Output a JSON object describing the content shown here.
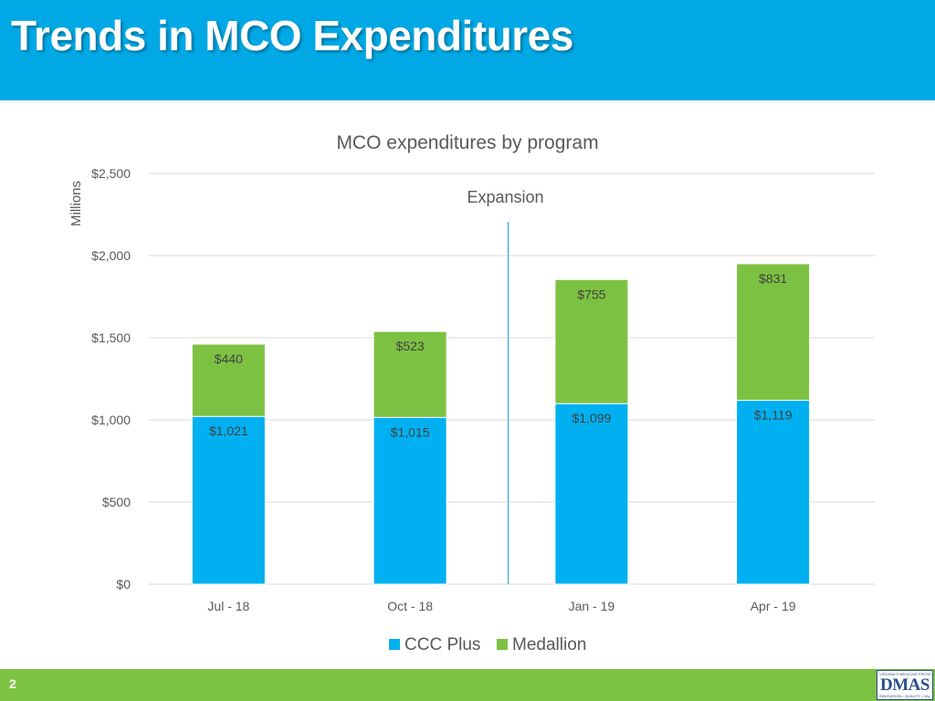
{
  "slide": {
    "title": "Trends in MCO Expenditures",
    "page_number": "2",
    "colors": {
      "header": "#00a9e6",
      "footer": "#7cc243"
    }
  },
  "logo": {
    "name": "DMAS",
    "top_text": "VIRGINIA'S MEDICAID PROGRAM",
    "bottom_text": "INNOVATION • QUALITY • VALUE"
  },
  "chart_data": {
    "type": "bar",
    "stacked": true,
    "title": "MCO expenditures by program",
    "ylabel": "Millions",
    "xlabel": "",
    "categories": [
      "Jul - 18",
      "Oct - 18",
      "Jan - 19",
      "Apr - 19"
    ],
    "series": [
      {
        "name": "CCC Plus",
        "color": "#00b0f0",
        "values": [
          1021,
          1015,
          1099,
          1119
        ],
        "labels": [
          "$1,021",
          "$1,015",
          "$1,099",
          "$1,119"
        ]
      },
      {
        "name": "Medallion",
        "color": "#7dc142",
        "values": [
          440,
          523,
          755,
          831
        ],
        "labels": [
          "$440",
          "$523",
          "$755",
          "$831"
        ]
      }
    ],
    "ylim": [
      0,
      2500
    ],
    "yticks": [
      0,
      500,
      1000,
      1500,
      2000,
      2500
    ],
    "ytick_labels": [
      "$0",
      "$500",
      "$1,000",
      "$1,500",
      "$2,000",
      "$2,500"
    ],
    "grid": true,
    "annotation": {
      "text": "Expansion",
      "between_categories": [
        "Oct - 18",
        "Jan - 19"
      ]
    },
    "legend_position": "bottom"
  }
}
